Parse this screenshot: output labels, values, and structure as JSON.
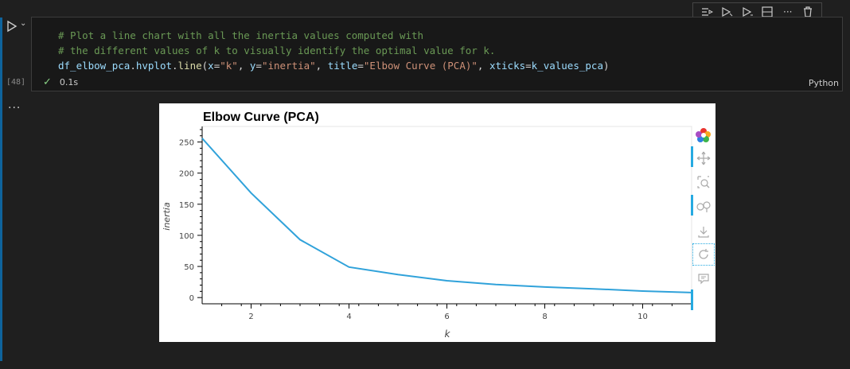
{
  "execution_count": "[48]",
  "code_lines": {
    "comment1": "# Plot a line chart with all the inertia values computed with",
    "comment2": "# the different values of k to visually identify the optimal value for k.",
    "l3_a": "df_elbow_pca",
    "l3_b": ".",
    "l3_c": "hvplot",
    "l3_d": ".",
    "l3_e": "line",
    "l3_f": "(",
    "l3_g": "x",
    "l3_h": "=",
    "l3_i": "\"k\"",
    "l3_j": ", ",
    "l3_k": "y",
    "l3_l": "=",
    "l3_m": "\"inertia\"",
    "l3_n": ", ",
    "l3_o": "title",
    "l3_p": "=",
    "l3_q": "\"Elbow Curve (PCA)\"",
    "l3_r": ", ",
    "l3_s": "xticks",
    "l3_t": "=",
    "l3_u": "k_values_pca",
    "l3_v": ")"
  },
  "status": {
    "duration": "0.1s",
    "language": "Python"
  },
  "output_indicator": "...",
  "icons": {
    "run": "play-icon",
    "toolbar": [
      "run-by-line-icon",
      "execute-above-icon",
      "execute-below-icon",
      "split-cell-icon",
      "more-icon",
      "delete-icon"
    ],
    "bokeh": [
      "bokeh-logo-icon",
      "pan-icon",
      "box-zoom-icon",
      "wheel-zoom-icon",
      "save-icon",
      "reset-icon",
      "hover-icon"
    ]
  },
  "colors": {
    "accent": "#0e639c",
    "line": "#30a2da",
    "success": "#89d185"
  },
  "chart_data": {
    "type": "line",
    "title": "Elbow Curve (PCA)",
    "xlabel": "k",
    "ylabel": "inertia",
    "x": [
      1,
      2,
      3,
      4,
      5,
      6,
      7,
      8,
      9,
      10,
      11
    ],
    "series": [
      {
        "values": [
          256,
          168,
          93,
          49,
          37,
          27,
          21,
          17,
          14,
          10.5,
          8
        ]
      }
    ],
    "xlim": [
      1,
      11
    ],
    "ylim": [
      -10,
      275
    ],
    "x_ticks": [
      2,
      4,
      6,
      8,
      10
    ],
    "y_ticks": [
      0,
      50,
      100,
      150,
      200,
      250
    ],
    "grid": false,
    "legend": "none"
  }
}
